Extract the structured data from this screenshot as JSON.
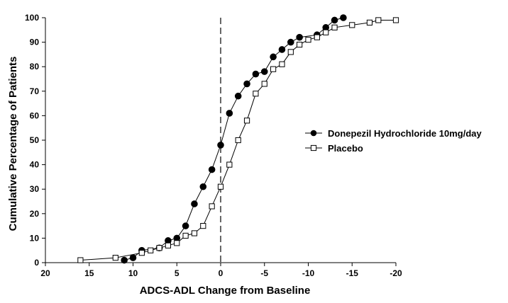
{
  "chart_data": {
    "type": "line",
    "xlabel": "ADCS-ADL Change from Baseline",
    "ylabel": "Cumulative Percentage of Patients",
    "xlim": [
      20,
      -20
    ],
    "ylim": [
      0,
      100
    ],
    "x_ticks": [
      "20",
      "15",
      "10",
      "5",
      "0",
      "-5",
      "-10",
      "-15",
      "-20"
    ],
    "y_ticks": [
      "0",
      "10",
      "20",
      "30",
      "40",
      "50",
      "60",
      "70",
      "80",
      "90",
      "100"
    ],
    "reference_line": {
      "x": 0,
      "style": "dashed"
    },
    "grid": false,
    "legend_position": "right",
    "series": [
      {
        "name": "Donepezil Hydrochloride 10mg/day",
        "marker": "filled-circle",
        "points": [
          [
            11,
            1
          ],
          [
            10,
            2
          ],
          [
            9,
            5
          ],
          [
            7,
            6
          ],
          [
            6,
            9
          ],
          [
            5,
            10
          ],
          [
            4,
            15
          ],
          [
            3,
            24
          ],
          [
            2,
            31
          ],
          [
            1,
            38
          ],
          [
            0,
            48
          ],
          [
            -1,
            61
          ],
          [
            -2,
            68
          ],
          [
            -3,
            73
          ],
          [
            -4,
            77
          ],
          [
            -5,
            78
          ],
          [
            -6,
            84
          ],
          [
            -7,
            87
          ],
          [
            -8,
            90
          ],
          [
            -9,
            92
          ],
          [
            -11,
            93
          ],
          [
            -12,
            96
          ],
          [
            -13,
            99
          ],
          [
            -14,
            100
          ]
        ]
      },
      {
        "name": "Placebo",
        "marker": "open-square",
        "points": [
          [
            16,
            1
          ],
          [
            12,
            2
          ],
          [
            9,
            4
          ],
          [
            8,
            5
          ],
          [
            7,
            6
          ],
          [
            6,
            7
          ],
          [
            5,
            8
          ],
          [
            4,
            11
          ],
          [
            3,
            12
          ],
          [
            2,
            15
          ],
          [
            1,
            23
          ],
          [
            0,
            31
          ],
          [
            -1,
            40
          ],
          [
            -2,
            50
          ],
          [
            -3,
            58
          ],
          [
            -4,
            69
          ],
          [
            -5,
            73
          ],
          [
            -6,
            79
          ],
          [
            -7,
            81
          ],
          [
            -8,
            86
          ],
          [
            -9,
            89
          ],
          [
            -10,
            91
          ],
          [
            -11,
            92
          ],
          [
            -12,
            94
          ],
          [
            -13,
            96
          ],
          [
            -15,
            97
          ],
          [
            -17,
            98
          ],
          [
            -18,
            99
          ],
          [
            -20,
            99
          ]
        ]
      }
    ]
  }
}
